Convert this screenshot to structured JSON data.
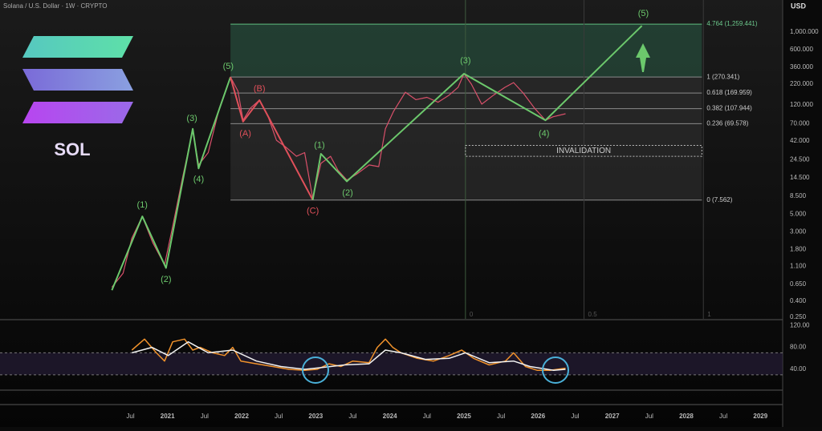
{
  "header": {
    "title": "Solana / U.S. Dollar · 1W · CRYPTO",
    "currency": "USD"
  },
  "logo": {
    "text": "SOL"
  },
  "chart_data": [
    {
      "type": "line",
      "log_scale": true,
      "grid": false,
      "xlim": [
        2018.74,
        2029.3
      ],
      "xticks": [
        {
          "value": 2020.5,
          "label": "Jul"
        },
        2021,
        {
          "value": 2021.5,
          "label": "Jul"
        },
        2022,
        {
          "value": 2022.5,
          "label": "Jul"
        },
        2023,
        {
          "value": 2023.5,
          "label": "Jul"
        },
        2024,
        {
          "value": 2024.5,
          "label": "Jul"
        },
        2025,
        {
          "value": 2025.5,
          "label": "Jul"
        },
        2026,
        {
          "value": 2026.5,
          "label": "Jul"
        },
        2027,
        {
          "value": 2027.5,
          "label": "Jul"
        },
        2028,
        {
          "value": 2028.5,
          "label": "Jul"
        },
        2029
      ],
      "ylim": [
        0.239,
        2540
      ],
      "yticks": [
        {
          "value": 1000,
          "label": "1,000.000"
        },
        {
          "value": 600,
          "label": "600.000"
        },
        {
          "value": 360,
          "label": "360.000"
        },
        {
          "value": 220,
          "label": "220.000"
        },
        {
          "value": 120,
          "label": "120.000"
        },
        {
          "value": 70,
          "label": "70.000"
        },
        {
          "value": 42,
          "label": "42.000"
        },
        {
          "value": 24.5,
          "label": "24.500"
        },
        {
          "value": 14.5,
          "label": "14.500"
        },
        {
          "value": 8.5,
          "label": "8.500"
        },
        {
          "value": 5,
          "label": "5.000"
        },
        {
          "value": 3,
          "label": "3.000"
        },
        {
          "value": 1.8,
          "label": "1.800"
        },
        {
          "value": 1.1,
          "label": "1.100"
        },
        {
          "value": 0.65,
          "label": "0.650"
        },
        {
          "value": 0.4,
          "label": "0.400"
        },
        {
          "value": 0.25,
          "label": "0.250"
        }
      ],
      "series": [
        {
          "color": "#d9506a",
          "x": [
            2020.25,
            2020.4,
            2020.52,
            2020.66,
            2020.8,
            2020.96,
            2021.07,
            2021.2,
            2021.34,
            2021.42,
            2021.55,
            2021.7,
            2021.85,
            2021.95,
            2022.02,
            2022.12,
            2022.24,
            2022.35,
            2022.47,
            2022.6,
            2022.74,
            2022.85,
            2022.96,
            2023.07,
            2023.2,
            2023.3,
            2023.42,
            2023.55,
            2023.72,
            2023.85,
            2023.94,
            2024.05,
            2024.21,
            2024.35,
            2024.5,
            2024.65,
            2024.8,
            2024.92,
            2025.0,
            2025.1,
            2025.24,
            2025.4,
            2025.55,
            2025.67,
            2025.8,
            2025.95,
            2026.1,
            2026.2,
            2026.37
          ],
          "values": [
            0.6,
            0.9,
            2.5,
            4.7,
            2.2,
            1.15,
            3.5,
            14,
            58,
            21,
            30,
            110,
            270,
            180,
            77,
            110,
            138,
            90,
            43,
            35,
            27,
            30,
            7.9,
            22,
            27,
            18,
            13.5,
            16,
            21,
            20,
            60,
            100,
            174,
            140,
            150,
            130,
            160,
            200,
            298,
            220,
            123,
            160,
            200,
            230,
            170,
            110,
            77,
            85,
            93
          ]
        },
        {
          "color": "#6cc86c",
          "x": [
            2020.25,
            2020.66,
            2020.98,
            2021.34,
            2021.42,
            2021.85
          ],
          "values": [
            0.55,
            4.7,
            1.05,
            60,
            19,
            270
          ]
        },
        {
          "color": "#e0505a",
          "x": [
            2021.85,
            2022.02,
            2022.24,
            2022.96
          ],
          "values": [
            270,
            74,
            138,
            7.6
          ]
        },
        {
          "color": "#6cc86c",
          "x": [
            2022.96,
            2023.07,
            2023.42,
            2025.0,
            2026.1,
            2027.4
          ],
          "values": [
            7.6,
            29,
            13,
            298,
            77,
            1200
          ]
        }
      ],
      "annotations": [
        {
          "text": "(1)",
          "x": 2020.66,
          "y": 6.5,
          "color": "#6cc86c"
        },
        {
          "text": "(2)",
          "x": 2020.98,
          "y": 0.75,
          "color": "#6cc86c"
        },
        {
          "text": "(3)",
          "x": 2021.33,
          "y": 81,
          "color": "#6cc86c"
        },
        {
          "text": "(4)",
          "x": 2021.42,
          "y": 13.7,
          "color": "#6cc86c"
        },
        {
          "text": "(5)",
          "x": 2021.82,
          "y": 367,
          "color": "#6cc86c"
        },
        {
          "text": "(A)",
          "x": 2022.05,
          "y": 52,
          "color": "#e0505a"
        },
        {
          "text": "(B)",
          "x": 2022.24,
          "y": 191,
          "color": "#e0505a"
        },
        {
          "text": "(C)",
          "x": 2022.96,
          "y": 5.5,
          "color": "#e0505a"
        },
        {
          "text": "(1)",
          "x": 2023.05,
          "y": 37,
          "color": "#6cc86c"
        },
        {
          "text": "(2)",
          "x": 2023.43,
          "y": 9.2,
          "color": "#6cc86c"
        },
        {
          "text": "(3)",
          "x": 2025.02,
          "y": 432,
          "color": "#6cc86c"
        },
        {
          "text": "(4)",
          "x": 2026.08,
          "y": 52,
          "color": "#6cc86c"
        },
        {
          "text": "(5)",
          "x": 2027.42,
          "y": 1710,
          "color": "#6cc86c"
        }
      ],
      "fib_x": [
        2021.85,
        2028.21
      ],
      "fib_levels": [
        {
          "label": "4.764 (1,259.441)",
          "value": 1259.441
        },
        {
          "label": "1 (270.341)",
          "value": 270.341
        },
        {
          "label": "0.618 (169.959)",
          "value": 169.959
        },
        {
          "label": "0.382 (107.944)",
          "value": 107.944
        },
        {
          "label": "0.236 (69.578)",
          "value": 69.578
        },
        {
          "label": "0 (7.562)",
          "value": 7.562
        }
      ],
      "time_fib": [
        {
          "level": 0,
          "x": 2025.02
        },
        {
          "level": 0.5,
          "x": 2026.62
        },
        {
          "level": 1,
          "x": 2028.23
        }
      ],
      "invalidation": {
        "label": "INVALIDATION",
        "range": [
          27,
          37
        ]
      }
    },
    {
      "type": "line",
      "grid": false,
      "ylim": [
        2,
        129
      ],
      "yticks": [
        {
          "value": 120,
          "label": "120.00"
        },
        {
          "value": 80,
          "label": "80.00"
        },
        {
          "value": 40,
          "label": "40.00"
        }
      ],
      "band": [
        30,
        70
      ],
      "series": [
        {
          "color": "#f0922b",
          "x": [
            2020.52,
            2020.69,
            2020.85,
            2020.96,
            2021.07,
            2021.23,
            2021.34,
            2021.44,
            2021.61,
            2021.77,
            2021.88,
            2021.99,
            2022.2,
            2022.42,
            2022.64,
            2022.85,
            2023.02,
            2023.18,
            2023.34,
            2023.5,
            2023.72,
            2023.83,
            2023.94,
            2024.04,
            2024.15,
            2024.37,
            2024.59,
            2024.8,
            2024.97,
            2025.13,
            2025.34,
            2025.56,
            2025.67,
            2025.83,
            2025.99,
            2026.16,
            2026.37
          ],
          "values": [
            75,
            95,
            70,
            55,
            90,
            95,
            75,
            80,
            70,
            65,
            80,
            55,
            50,
            45,
            40,
            38,
            40,
            50,
            45,
            55,
            52,
            80,
            95,
            80,
            70,
            60,
            55,
            65,
            75,
            60,
            48,
            55,
            70,
            45,
            38,
            38,
            42
          ]
        },
        {
          "color": "#f2f2f2",
          "x": [
            2020.52,
            2020.79,
            2021.01,
            2021.28,
            2021.55,
            2021.88,
            2022.2,
            2022.53,
            2022.85,
            2023.07,
            2023.39,
            2023.72,
            2023.94,
            2024.15,
            2024.48,
            2024.8,
            2025.02,
            2025.34,
            2025.67,
            2025.89,
            2026.21,
            2026.37
          ],
          "values": [
            70,
            80,
            65,
            90,
            70,
            75,
            55,
            45,
            40,
            43,
            48,
            50,
            75,
            70,
            58,
            60,
            70,
            52,
            55,
            45,
            38,
            40
          ]
        }
      ]
    }
  ]
}
